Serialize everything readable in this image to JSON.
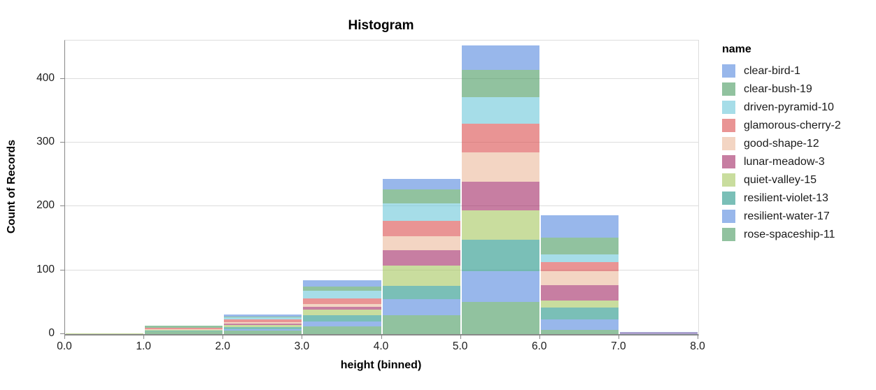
{
  "title": "Histogram",
  "legend": {
    "title": "name"
  },
  "colors": {
    "grid": "#dddddd",
    "axis_domain": "#888888",
    "view_border": "#dddddd",
    "label_text": "#1a1a1a",
    "title_text": "#000000"
  },
  "chart_data": {
    "type": "bar",
    "variant": "stacked-histogram",
    "title": "Histogram",
    "xlabel": "height (binned)",
    "ylabel": "Count of Records",
    "xlim": [
      0,
      8
    ],
    "ylim": [
      0,
      460
    ],
    "grid": true,
    "legend_position": "right",
    "mark_opacity": 0.6,
    "x_tick_labels": [
      "0.0",
      "1.0",
      "2.0",
      "3.0",
      "4.0",
      "5.0",
      "6.0",
      "7.0",
      "8.0"
    ],
    "y_ticks": [
      0,
      100,
      200,
      300,
      400
    ],
    "bins": [
      [
        0,
        1
      ],
      [
        1,
        2
      ],
      [
        2,
        3
      ],
      [
        3,
        4
      ],
      [
        4,
        5
      ],
      [
        5,
        6
      ],
      [
        6,
        7
      ],
      [
        7,
        8
      ]
    ],
    "bin_totals": [
      1,
      13,
      31,
      84,
      243,
      452,
      186,
      3
    ],
    "stack_order_bottom_to_top": [
      "rose-spaceship-11",
      "resilient-water-17",
      "resilient-violet-13",
      "quiet-valley-15",
      "lunar-meadow-3",
      "good-shape-12",
      "glamorous-cherry-2",
      "driven-pyramid-10",
      "clear-bush-19",
      "clear-bird-1"
    ],
    "series": [
      {
        "name": "clear-bird-1",
        "color": "#5387DD",
        "values": [
          0,
          0,
          4,
          9,
          16,
          38,
          35,
          1
        ]
      },
      {
        "name": "clear-bush-19",
        "color": "#479A5F",
        "values": [
          0,
          3,
          1,
          7,
          22,
          43,
          26,
          0
        ]
      },
      {
        "name": "driven-pyramid-10",
        "color": "#6BC6D9",
        "values": [
          0,
          0,
          3,
          12,
          28,
          41,
          12,
          0
        ]
      },
      {
        "name": "glamorous-cherry-2",
        "color": "#DA4C4C",
        "values": [
          0,
          2,
          4,
          9,
          24,
          45,
          14,
          0
        ]
      },
      {
        "name": "good-shape-12",
        "color": "#EBB99B",
        "values": [
          0,
          1,
          3,
          4,
          22,
          46,
          22,
          0
        ]
      },
      {
        "name": "lunar-meadow-3",
        "color": "#A12864",
        "values": [
          0,
          0,
          2,
          5,
          24,
          45,
          24,
          1
        ]
      },
      {
        "name": "quiet-valley-15",
        "color": "#A5C65D",
        "values": [
          1,
          1,
          3,
          8,
          31,
          46,
          11,
          0
        ]
      },
      {
        "name": "resilient-violet-13",
        "color": "#229487",
        "values": [
          0,
          2,
          3,
          10,
          21,
          49,
          19,
          0
        ]
      },
      {
        "name": "resilient-water-17",
        "color": "#5387DD",
        "values": [
          0,
          0,
          3,
          8,
          25,
          49,
          16,
          1
        ]
      },
      {
        "name": "rose-spaceship-11",
        "color": "#479A5F",
        "values": [
          0,
          4,
          5,
          12,
          30,
          50,
          7,
          0
        ]
      }
    ]
  }
}
